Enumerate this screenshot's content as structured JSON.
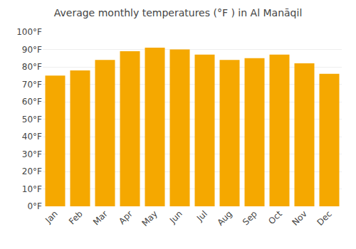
{
  "chart_data": {
    "type": "bar",
    "title": "Average monthly temperatures (°F ) in Al Manāqil",
    "categories": [
      "Jan",
      "Feb",
      "Mar",
      "Apr",
      "May",
      "Jun",
      "Jul",
      "Aug",
      "Sep",
      "Oct",
      "Nov",
      "Dec"
    ],
    "values": [
      75,
      78,
      84,
      89,
      91,
      90,
      87,
      84,
      85,
      87,
      82,
      76
    ],
    "color": "#F5A800",
    "ylim": [
      0,
      100
    ],
    "yticks": [
      {
        "value": 0,
        "label": "0°F"
      },
      {
        "value": 10,
        "label": "10°F"
      },
      {
        "value": 20,
        "label": "20°F"
      },
      {
        "value": 30,
        "label": "30°F"
      },
      {
        "value": 40,
        "label": "40°F"
      },
      {
        "value": 50,
        "label": "50°F"
      },
      {
        "value": 60,
        "label": "60°F"
      },
      {
        "value": 70,
        "label": "70°F"
      },
      {
        "value": 80,
        "label": "80°F"
      },
      {
        "value": 90,
        "label": "90°F"
      },
      {
        "value": 100,
        "label": "100°F"
      }
    ],
    "grid": true
  }
}
